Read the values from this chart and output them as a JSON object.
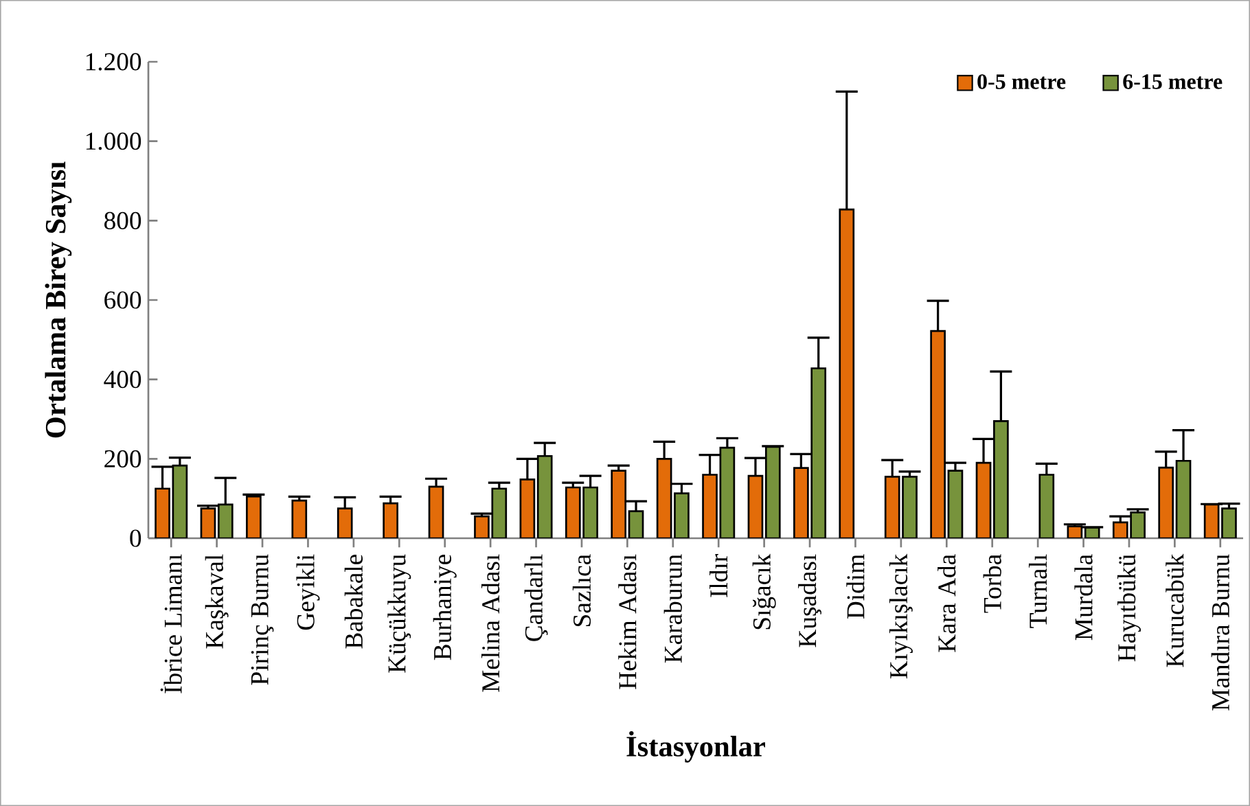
{
  "chart_data": {
    "type": "bar",
    "xlabel": "İstasyonlar",
    "ylabel": "Ortalama Birey Sayısı",
    "categories": [
      "İbrice Limanı",
      "Kaşkaval",
      "Pirinç Burnu",
      "Geyikli",
      "Babakale",
      "Küçükkuyu",
      "Burhaniye",
      "Melina Adası",
      "Çandarlı",
      "Sazlıca",
      "Hekim Adası",
      "Karaburun",
      "Ildır",
      "Sığacık",
      "Kuşadası",
      "Didim",
      "Kıyıkışlacık",
      "Kara Ada",
      "Torba",
      "Turnalı",
      "Murdala",
      "Hayıtbükü",
      "Kurucabük",
      "Mandıra Burnu"
    ],
    "series": [
      {
        "name": "0-5 metre",
        "color": "#e36c09",
        "values": [
          125,
          75,
          105,
          95,
          75,
          88,
          130,
          55,
          148,
          128,
          170,
          200,
          160,
          157,
          177,
          828,
          155,
          522,
          190,
          null,
          30,
          40,
          178,
          85
        ],
        "errors": [
          55,
          7,
          5,
          10,
          28,
          17,
          20,
          7,
          52,
          12,
          13,
          43,
          50,
          45,
          35,
          297,
          42,
          76,
          60,
          null,
          5,
          15,
          40,
          1
        ]
      },
      {
        "name": "6-15 metre",
        "color": "#77933c",
        "values": [
          183,
          85,
          null,
          null,
          null,
          null,
          null,
          125,
          207,
          128,
          68,
          113,
          228,
          230,
          428,
          null,
          155,
          170,
          295,
          160,
          27,
          65,
          195,
          75
        ],
        "errors": [
          20,
          67,
          null,
          null,
          null,
          null,
          null,
          15,
          33,
          29,
          25,
          24,
          24,
          2,
          77,
          null,
          13,
          20,
          125,
          28,
          1,
          8,
          77,
          12
        ]
      }
    ],
    "ylim": [
      0,
      1200
    ],
    "yticks": [
      0,
      200,
      400,
      600,
      800,
      {
        "value": 1000,
        "label": "1.000"
      },
      {
        "value": 1200,
        "label": "1.200"
      }
    ],
    "grid": false,
    "legend": "top right"
  }
}
